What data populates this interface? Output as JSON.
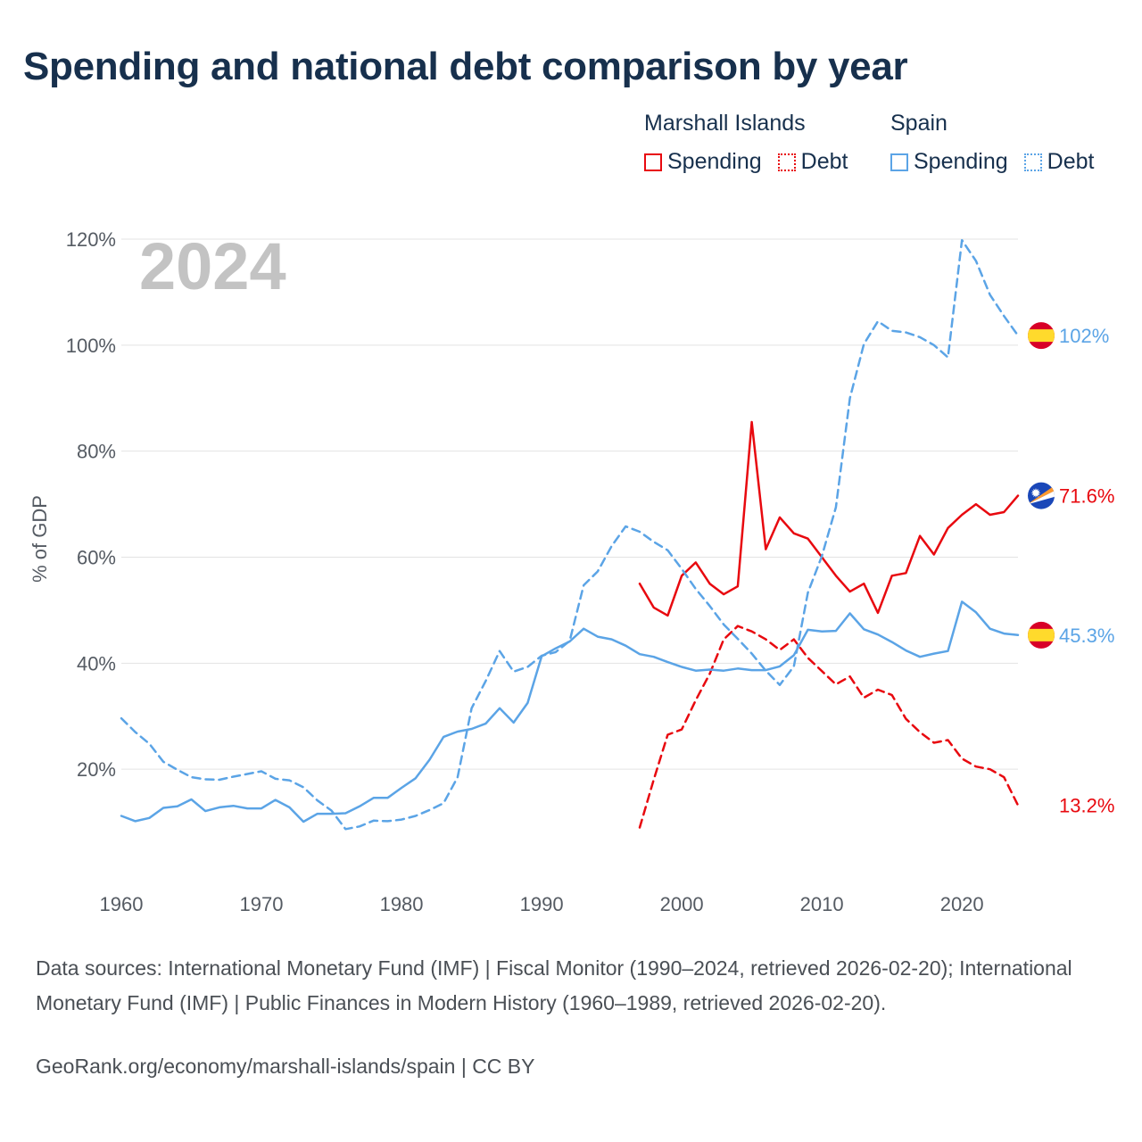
{
  "title": "Spending and national debt comparison by year",
  "legend": {
    "groups": [
      {
        "country": "Marshall Islands",
        "items": [
          {
            "label": "Spending"
          },
          {
            "label": "Debt"
          }
        ]
      },
      {
        "country": "Spain",
        "items": [
          {
            "label": "Spending"
          },
          {
            "label": "Debt"
          }
        ]
      }
    ]
  },
  "colors": {
    "marshall": "#e8090f",
    "spain": "#5ba4e6",
    "grid": "#e3e3e3",
    "year_watermark": "#c3c3c3"
  },
  "chart_data": {
    "type": "line",
    "year_watermark": "2024",
    "ylabel": "% of GDP",
    "xlim": [
      1960,
      2024
    ],
    "ylim": [
      0,
      120
    ],
    "xticks": [
      1960,
      1970,
      1980,
      1990,
      2000,
      2010,
      2020
    ],
    "yticks": [
      20,
      40,
      60,
      80,
      100,
      120
    ],
    "ytick_labels": [
      "20%",
      "40%",
      "60%",
      "80%",
      "100%",
      "120%"
    ],
    "series": [
      {
        "name": "Marshall Islands Spending",
        "country": "Marshall Islands",
        "measure": "Spending",
        "color_key": "marshall",
        "dashed": false,
        "end_label": "71.6%",
        "flag": "marshall-islands-flag-icon",
        "start_year": 1997,
        "values": [
          55,
          50.5,
          49,
          56.5,
          59,
          55,
          53,
          54.5,
          85.5,
          61.5,
          67.5,
          64.5,
          63.5,
          60,
          56.5,
          53.5,
          55,
          49.5,
          56.5,
          57,
          64,
          60.5,
          65.5,
          68,
          70,
          68,
          68.5,
          71.6
        ]
      },
      {
        "name": "Marshall Islands Debt",
        "country": "Marshall Islands",
        "measure": "Debt",
        "color_key": "marshall",
        "dashed": true,
        "end_label": "13.2%",
        "flag": "marshall-islands-flag-icon",
        "start_year": 1997,
        "values": [
          9,
          18,
          26.5,
          27.5,
          33,
          38,
          44.5,
          47,
          46,
          44.5,
          42.5,
          44.5,
          41,
          38.5,
          36,
          37.5,
          33.5,
          35,
          34,
          29.5,
          27,
          25,
          25.5,
          22,
          20.5,
          20,
          18.5,
          13.2
        ]
      },
      {
        "name": "Spain Spending",
        "country": "Spain",
        "measure": "Spending",
        "color_key": "spain",
        "dashed": false,
        "end_label": "45.3%",
        "flag": "spain-flag-icon",
        "start_year": 1960,
        "values": [
          11.2,
          10.2,
          10.8,
          12.7,
          13,
          14.3,
          12.1,
          12.8,
          13.1,
          12.6,
          12.6,
          14.2,
          12.8,
          10.1,
          11.6,
          11.6,
          11.7,
          13,
          14.6,
          14.6,
          16.5,
          18.3,
          21.8,
          26.1,
          27.1,
          27.6,
          28.6,
          31.5,
          28.8,
          32.5,
          41.3,
          42.8,
          44.1,
          46.5,
          45,
          44.5,
          43.3,
          41.7,
          41.2,
          40.2,
          39.3,
          38.6,
          38.8,
          38.6,
          39,
          38.7,
          38.7,
          39.4,
          41.5,
          46.3,
          46,
          46.1,
          49.4,
          46.4,
          45.4,
          44,
          42.4,
          41.2,
          41.8,
          42.3,
          51.6,
          49.6,
          46.5,
          45.6,
          45.3
        ]
      },
      {
        "name": "Spain Debt",
        "country": "Spain",
        "measure": "Debt",
        "color_key": "spain",
        "dashed": true,
        "end_label": "102%",
        "flag": "spain-flag-icon",
        "start_year": 1960,
        "values": [
          29.6,
          27,
          24.8,
          21.4,
          19.9,
          18.5,
          18.1,
          18,
          18.6,
          19.1,
          19.6,
          18.2,
          17.9,
          16.6,
          14.1,
          12.2,
          8.7,
          9.2,
          10.3,
          10.2,
          10.5,
          11.2,
          12.3,
          13.6,
          18.5,
          31.5,
          36.6,
          42.3,
          38.4,
          39.3,
          41.4,
          42.1,
          44.2,
          54.7,
          57.3,
          62.1,
          65.8,
          64.8,
          62.9,
          61.3,
          57.8,
          54,
          50.8,
          47.3,
          44.6,
          41.8,
          38.6,
          35.9,
          39.4,
          53.3,
          60.2,
          69.4,
          90,
          100.2,
          104.5,
          102.7,
          102.4,
          101.5,
          100,
          97.7,
          119.8,
          115.9,
          109.5,
          105.5,
          101.8
        ]
      }
    ]
  },
  "footer": {
    "sources": "Data sources: International Monetary Fund (IMF) | Fiscal Monitor (1990–2024, retrieved 2026-02-20); International Monetary Fund (IMF) | Public Finances in Modern History (1960–1989, retrieved 2026-02-20).",
    "credit": "GeoRank.org/economy/marshall-islands/spain | CC BY"
  }
}
